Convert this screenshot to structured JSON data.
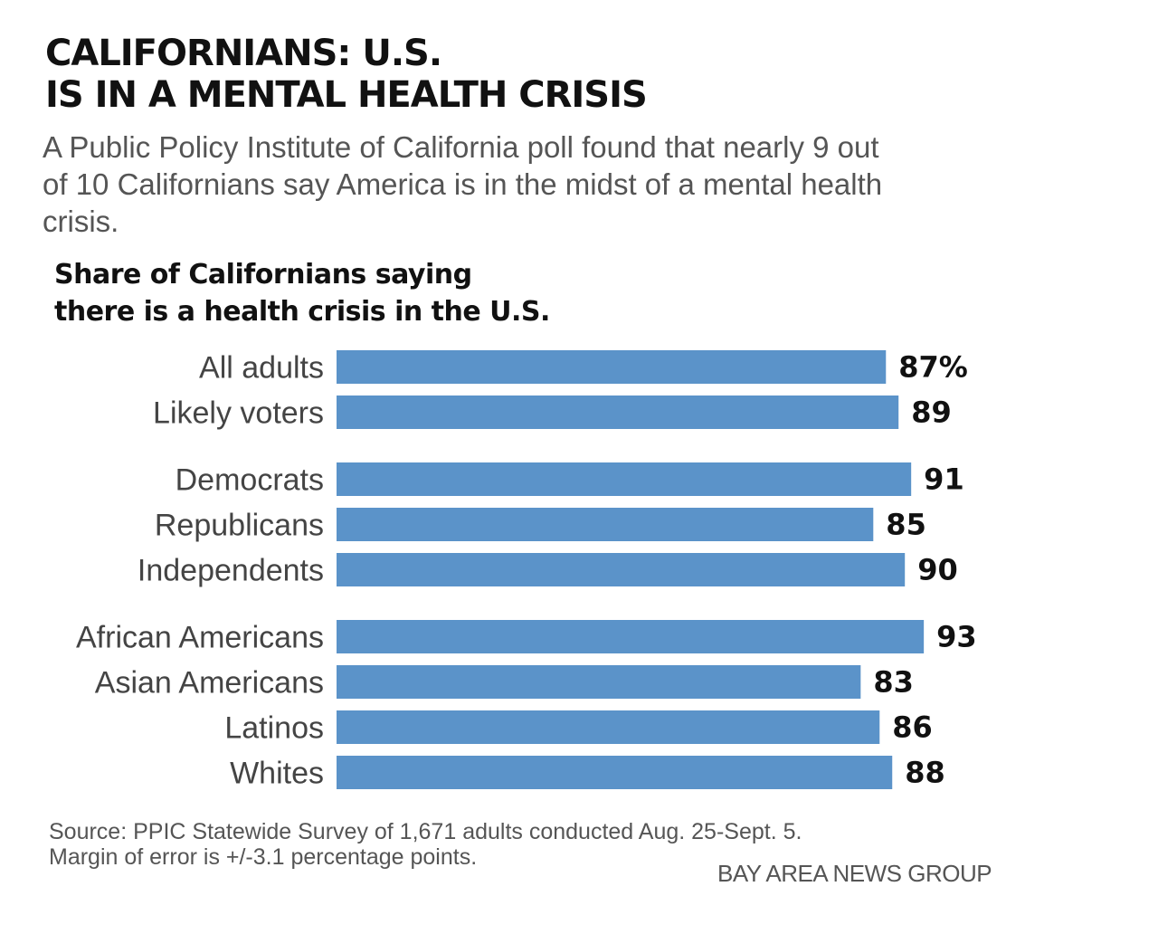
{
  "header": {
    "title_line1": "CALIFORNIANS: U.S.",
    "title_line2": "IS IN A MENTAL HEALTH CRISIS",
    "description": "A Public Policy Institute of California poll found that nearly 9 out of 10 Californians say America is in the midst of a mental health crisis."
  },
  "chart_data": {
    "type": "bar",
    "orientation": "horizontal",
    "title_line1": "Share of Californians saying",
    "title_line2": "there is a health crisis in the U.S.",
    "categories": [
      "All adults",
      "Likely voters",
      "Democrats",
      "Republicans",
      "Independents",
      "African Americans",
      "Asian Americans",
      "Latinos",
      "Whites"
    ],
    "groups": [
      [
        "All adults",
        "Likely voters"
      ],
      [
        "Democrats",
        "Republicans",
        "Independents"
      ],
      [
        "African Americans",
        "Asian Americans",
        "Latinos",
        "Whites"
      ]
    ],
    "values": [
      87,
      89,
      91,
      85,
      90,
      93,
      83,
      86,
      88
    ],
    "value_labels": [
      "87%",
      "89",
      "91",
      "85",
      "90",
      "93",
      "83",
      "86",
      "88"
    ],
    "unit": "%",
    "xlim": [
      0,
      100
    ],
    "bar_color": "#5b93c9",
    "grid": false,
    "legend": "none"
  },
  "footer": {
    "source_line1": "Source: PPIC Statewide Survey of 1,671 adults conducted Aug. 25-Sept. 5.",
    "source_line2": "Margin of error is +/-3.1 percentage points.",
    "credit": "BAY AREA NEWS GROUP"
  }
}
